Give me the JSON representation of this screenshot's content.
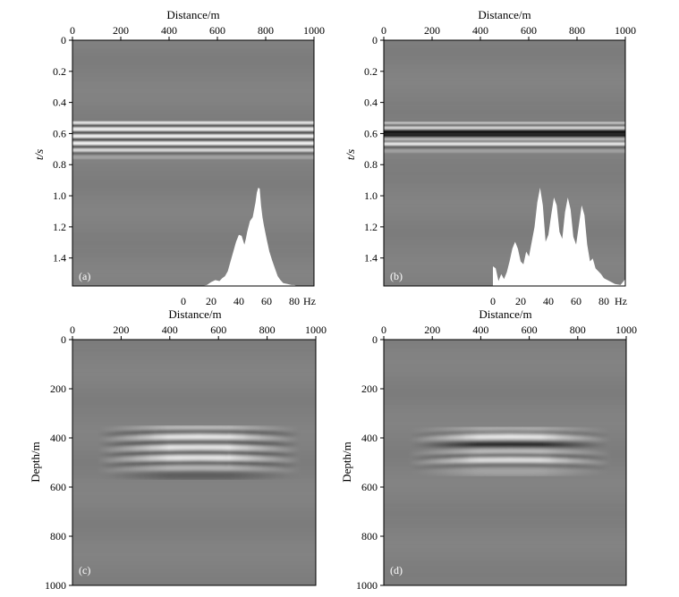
{
  "figure": {
    "panel_a": {
      "label": "(a)",
      "ylabel": "t/s",
      "xlabel": "Distance/m"
    },
    "panel_b": {
      "label": "(b)",
      "ylabel": "t/s",
      "xlabel": "Distance/m"
    },
    "panel_c": {
      "label": "(c)",
      "ylabel": "Depth/m",
      "xlabel": "Distance/m"
    },
    "panel_d": {
      "label": "(d)",
      "ylabel": "Depth/m",
      "xlabel": "Distance/m"
    },
    "spectrum_unit": "Hz"
  },
  "chart_data": [
    {
      "id": "a",
      "type": "heatmap",
      "title": "",
      "panel_label": "(a)",
      "xlabel": "Distance/m",
      "ylabel": "t/s",
      "x_axis_position": "top",
      "xlim": [
        0,
        1000
      ],
      "ylim": [
        0,
        1.58
      ],
      "x_ticks": [
        0,
        200,
        400,
        600,
        800,
        1000
      ],
      "x_tick_labels": [
        "0",
        "200",
        "400",
        "600",
        "800",
        "1000"
      ],
      "y_ticks": [
        0,
        0.2,
        0.4,
        0.6,
        0.8,
        1.0,
        1.2,
        1.4
      ],
      "y_tick_labels": [
        "0",
        "0.2",
        "0.4",
        "0.6",
        "0.8",
        "1.0",
        "1.2",
        "1.4"
      ],
      "reflection_bands": [
        {
          "t": 0.535,
          "amp": 0.9
        },
        {
          "t": 0.553,
          "amp": -0.7
        },
        {
          "t": 0.575,
          "amp": 0.95
        },
        {
          "t": 0.597,
          "amp": -0.8
        },
        {
          "t": 0.62,
          "amp": 0.9
        },
        {
          "t": 0.642,
          "amp": -0.8
        },
        {
          "t": 0.665,
          "amp": 0.95
        },
        {
          "t": 0.688,
          "amp": -0.6
        },
        {
          "t": 0.71,
          "amp": 0.6
        },
        {
          "t": 0.73,
          "amp": -0.3
        },
        {
          "t": 0.75,
          "amp": 0.2
        }
      ],
      "inset_spectrum": {
        "type": "area",
        "xlabel": "Hz",
        "x_ticks": [
          0,
          20,
          40,
          60,
          80
        ],
        "x_tick_labels": [
          "0",
          "20",
          "40",
          "60",
          "80"
        ],
        "xlim": [
          0,
          100
        ],
        "freq": [
          13,
          17,
          20,
          23,
          26,
          28,
          30,
          32,
          34,
          36,
          38,
          40,
          42,
          44,
          45,
          46,
          48,
          50,
          52,
          53,
          54,
          55,
          56,
          57,
          58,
          60,
          62,
          64,
          66,
          68,
          70,
          72,
          75,
          78,
          80,
          82,
          84
        ],
        "amp": [
          0,
          0.01,
          0.04,
          0.06,
          0.05,
          0.08,
          0.1,
          0.15,
          0.25,
          0.35,
          0.45,
          0.52,
          0.51,
          0.42,
          0.48,
          0.55,
          0.66,
          0.7,
          0.85,
          0.95,
          1.0,
          0.99,
          0.82,
          0.7,
          0.62,
          0.48,
          0.35,
          0.26,
          0.18,
          0.1,
          0.06,
          0.03,
          0.02,
          0.01,
          0.01,
          0.0,
          0.0
        ]
      }
    },
    {
      "id": "b",
      "type": "heatmap",
      "title": "",
      "panel_label": "(b)",
      "xlabel": "Distance/m",
      "ylabel": "t/s",
      "x_axis_position": "top",
      "xlim": [
        0,
        1000
      ],
      "ylim": [
        0,
        1.58
      ],
      "x_ticks": [
        0,
        200,
        400,
        600,
        800,
        1000
      ],
      "x_tick_labels": [
        "0",
        "200",
        "400",
        "600",
        "800",
        "1000"
      ],
      "y_ticks": [
        0,
        0.2,
        0.4,
        0.6,
        0.8,
        1.0,
        1.2,
        1.4
      ],
      "y_tick_labels": [
        "0",
        "0.2",
        "0.4",
        "0.6",
        "0.8",
        "1.0",
        "1.2",
        "1.4"
      ],
      "reflection_bands": [
        {
          "t": 0.54,
          "amp": 0.6
        },
        {
          "t": 0.553,
          "amp": -0.9
        },
        {
          "t": 0.57,
          "amp": 0.9
        },
        {
          "t": 0.585,
          "amp": -0.8
        },
        {
          "t": 0.62,
          "amp": -0.9
        },
        {
          "t": 0.642,
          "amp": 0.5
        },
        {
          "t": 0.658,
          "amp": -0.8
        },
        {
          "t": 0.672,
          "amp": 0.95
        },
        {
          "t": 0.69,
          "amp": -0.4
        },
        {
          "t": 0.71,
          "amp": 0.2
        }
      ],
      "inset_spectrum": {
        "type": "area",
        "xlabel": "Hz",
        "x_ticks": [
          0,
          20,
          40,
          60,
          80
        ],
        "x_tick_labels": [
          "0",
          "20",
          "40",
          "60",
          "80"
        ],
        "xlim": [
          0,
          100
        ],
        "freq": [
          0,
          2,
          4,
          6,
          8,
          10,
          12,
          14,
          16,
          18,
          20,
          22,
          24,
          26,
          28,
          30,
          32,
          34,
          36,
          38,
          40,
          42,
          44,
          46,
          48,
          50,
          52,
          54,
          56,
          58,
          60,
          62,
          64,
          66,
          68,
          70,
          72,
          74,
          76,
          78,
          80,
          84,
          88,
          92,
          96,
          100
        ],
        "amp": [
          0.2,
          0.18,
          0.05,
          0.12,
          0.07,
          0.14,
          0.25,
          0.38,
          0.45,
          0.38,
          0.25,
          0.22,
          0.35,
          0.3,
          0.45,
          0.6,
          0.85,
          1.0,
          0.82,
          0.45,
          0.52,
          0.72,
          0.9,
          0.82,
          0.55,
          0.48,
          0.75,
          0.9,
          0.78,
          0.5,
          0.42,
          0.62,
          0.82,
          0.72,
          0.42,
          0.25,
          0.28,
          0.18,
          0.15,
          0.12,
          0.08,
          0.05,
          0.02,
          0.01,
          0.08,
          0.05
        ]
      }
    },
    {
      "id": "c",
      "type": "heatmap",
      "title": "",
      "panel_label": "(c)",
      "xlabel": "Distance/m",
      "ylabel": "Depth/m",
      "x_axis_position": "top",
      "xlim": [
        0,
        1000
      ],
      "ylim": [
        0,
        1000
      ],
      "x_ticks": [
        0,
        200,
        400,
        600,
        800,
        1000
      ],
      "x_tick_labels": [
        "0",
        "200",
        "400",
        "600",
        "800",
        "1000"
      ],
      "y_ticks": [
        0,
        200,
        400,
        600,
        800,
        1000
      ],
      "y_tick_labels": [
        "0",
        "200",
        "400",
        "600",
        "800",
        "1000"
      ],
      "reflection_bands": [
        {
          "depth": 370,
          "amp": 0.5
        },
        {
          "depth": 385,
          "amp": -0.8
        },
        {
          "depth": 405,
          "amp": 0.9
        },
        {
          "depth": 425,
          "amp": -0.7
        },
        {
          "depth": 448,
          "amp": 0.8
        },
        {
          "depth": 468,
          "amp": -0.9
        },
        {
          "depth": 490,
          "amp": 0.95
        },
        {
          "depth": 510,
          "amp": -0.7
        },
        {
          "depth": 530,
          "amp": 0.4
        },
        {
          "depth": 550,
          "amp": -0.2
        }
      ]
    },
    {
      "id": "d",
      "type": "heatmap",
      "title": "",
      "panel_label": "(d)",
      "xlabel": "Distance/m",
      "ylabel": "Depth/m",
      "x_axis_position": "top",
      "xlim": [
        0,
        1000
      ],
      "ylim": [
        0,
        1000
      ],
      "x_ticks": [
        0,
        200,
        400,
        600,
        800,
        1000
      ],
      "x_tick_labels": [
        "0",
        "200",
        "400",
        "600",
        "800",
        "1000"
      ],
      "y_ticks": [
        0,
        200,
        400,
        600,
        800,
        1000
      ],
      "y_tick_labels": [
        "0",
        "200",
        "400",
        "600",
        "800",
        "1000"
      ],
      "reflection_bands": [
        {
          "depth": 375,
          "amp": 0.4
        },
        {
          "depth": 390,
          "amp": -0.7
        },
        {
          "depth": 405,
          "amp": 0.85
        },
        {
          "depth": 425,
          "amp": -0.5
        },
        {
          "depth": 465,
          "amp": 0.5
        },
        {
          "depth": 482,
          "amp": -0.95
        },
        {
          "depth": 500,
          "amp": 0.8
        },
        {
          "depth": 518,
          "amp": -0.5
        },
        {
          "depth": 535,
          "amp": 0.2
        }
      ]
    }
  ]
}
